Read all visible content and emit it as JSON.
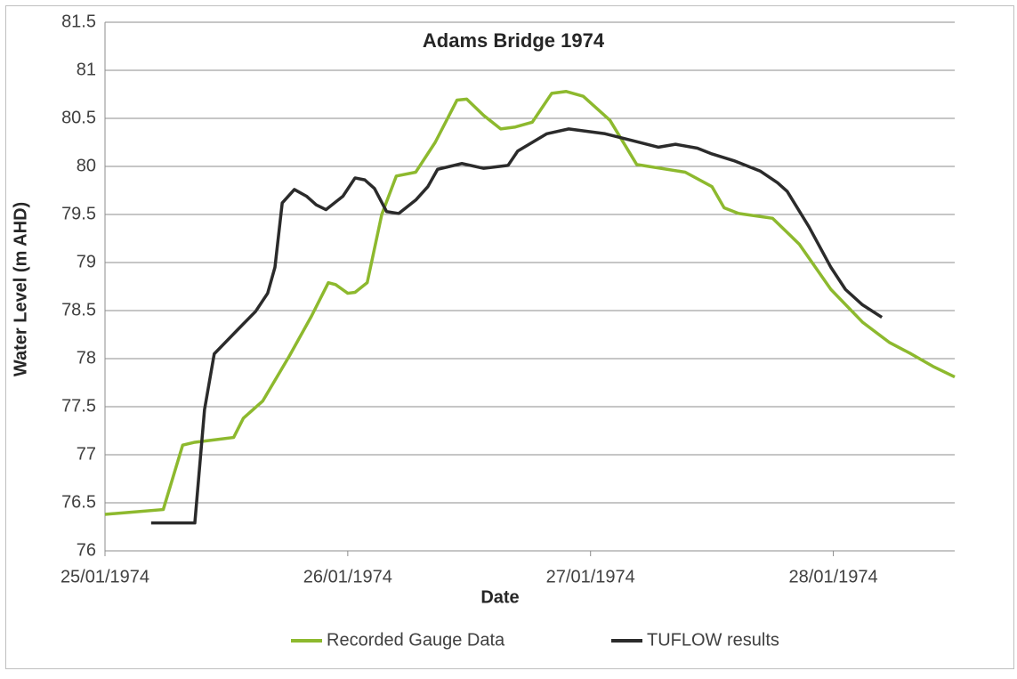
{
  "chart_data": {
    "type": "line",
    "title": "Adams Bridge 1974",
    "xlabel": "Date",
    "ylabel": "Water Level (m AHD)",
    "xlim": [
      27054,
      27057.5
    ],
    "xticks": [
      {
        "value": 27054,
        "label": "25/01/1974"
      },
      {
        "value": 27055,
        "label": "26/01/1974"
      },
      {
        "value": 27056,
        "label": "27/01/1974"
      },
      {
        "value": 27057,
        "label": "28/01/1974"
      }
    ],
    "ylim": [
      76,
      81.5
    ],
    "yticks": [
      76,
      76.5,
      77,
      77.5,
      78,
      78.5,
      79,
      79.5,
      80,
      80.5,
      81,
      81.5
    ],
    "grid": true,
    "legend": "bottom",
    "series": [
      {
        "name": "Recorded Gauge Data",
        "color": "#8db92e",
        "x": [
          27054,
          27054.1,
          27054.24,
          27054.32,
          27054.37,
          27054.53,
          27054.57,
          27054.65,
          27054.76,
          27054.85,
          27054.92,
          27054.95,
          27055,
          27055.03,
          27055.08,
          27055.14,
          27055.2,
          27055.28,
          27055.36,
          27055.45,
          27055.49,
          27055.56,
          27055.63,
          27055.69,
          27055.76,
          27055.84,
          27055.9,
          27055.97,
          27056.08,
          27056.19,
          27056.39,
          27056.5,
          27056.55,
          27056.61,
          27056.75,
          27056.86,
          27056.99,
          27057.12,
          27057.23,
          27057.32,
          27057.41,
          27057.5
        ],
        "values": [
          76.38,
          76.4,
          76.43,
          77.1,
          77.13,
          77.18,
          77.38,
          77.56,
          78.03,
          78.44,
          78.79,
          78.77,
          78.68,
          78.69,
          78.79,
          79.5,
          79.9,
          79.94,
          80.25,
          80.69,
          80.7,
          80.53,
          80.39,
          80.41,
          80.46,
          80.76,
          80.78,
          80.73,
          80.48,
          80.02,
          79.94,
          79.79,
          79.57,
          79.51,
          79.46,
          79.19,
          78.72,
          78.38,
          78.17,
          78.05,
          77.92,
          77.81
        ]
      },
      {
        "name": "TUFLOW results",
        "color": "#2b2b2b",
        "x": [
          27054.19,
          27054.37,
          27054.41,
          27054.45,
          27054.55,
          27054.62,
          27054.67,
          27054.7,
          27054.73,
          27054.78,
          27054.83,
          27054.87,
          27054.91,
          27054.98,
          27055.03,
          27055.07,
          27055.11,
          27055.16,
          27055.21,
          27055.28,
          27055.33,
          27055.37,
          27055.47,
          27055.56,
          27055.66,
          27055.7,
          27055.82,
          27055.91,
          27056.06,
          27056.17,
          27056.28,
          27056.35,
          27056.44,
          27056.5,
          27056.59,
          27056.7,
          27056.77,
          27056.81,
          27056.9,
          27056.99,
          27057.05,
          27057.12,
          27057.2
        ],
        "values": [
          76.29,
          76.29,
          77.47,
          78.05,
          78.31,
          78.49,
          78.68,
          78.95,
          79.62,
          79.76,
          79.69,
          79.6,
          79.55,
          79.69,
          79.88,
          79.86,
          79.77,
          79.53,
          79.51,
          79.65,
          79.79,
          79.97,
          80.03,
          79.98,
          80.01,
          80.16,
          80.34,
          80.39,
          80.34,
          80.27,
          80.2,
          80.23,
          80.19,
          80.13,
          80.06,
          79.95,
          79.83,
          79.74,
          79.37,
          78.95,
          78.72,
          78.56,
          78.43
        ]
      }
    ]
  }
}
